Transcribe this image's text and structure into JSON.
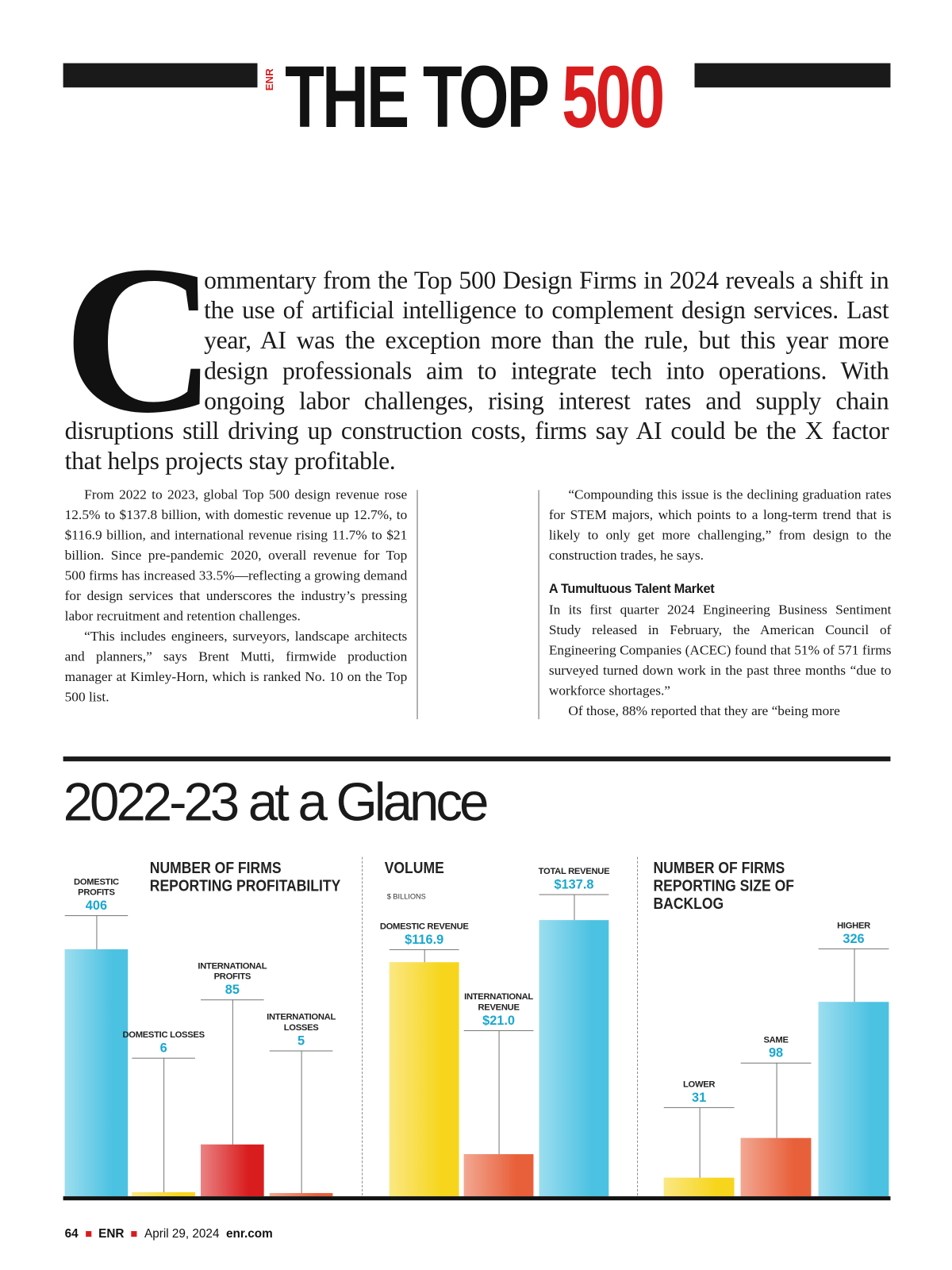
{
  "header": {
    "brand": "ENR",
    "title": "THE TOP",
    "title_number": "500"
  },
  "lede": {
    "drop_cap": "C",
    "text": "ommentary from the Top 500 Design Firms in 2024 reveals a shift in the use of artificial intelligence to complement design services. Last year, AI was the exception more than the rule, but this year more design professionals aim to integrate tech into operations. With ongoing labor challenges, rising interest rates and supply chain disruptions still driving up construction costs, firms say AI could be the X factor that helps projects stay profitable."
  },
  "column_left": [
    "From 2022 to 2023, global Top 500 design revenue rose 12.5% to $137.8 billion, with domestic revenue up 12.7%, to $116.9 billion, and international revenue rising 11.7% to $21 billion. Since pre-pandemic 2020, overall revenue for Top 500 firms has increased 33.5%—reflecting a growing demand for design services that underscores the industry’s pressing labor recruitment and retention challenges.",
    "“This includes engineers, surveyors, landscape architects and planners,” says Brent Mutti, firmwide production manager at Kimley-Horn, which is ranked No. 10 on the Top 500 list."
  ],
  "column_right": {
    "intro": "“Compounding this issue is the declining graduation rates for STEM majors, which points to a long-term trend that is likely to only get more challenging,” from design to the construction trades, he says.",
    "heading": "A Tumultuous Talent Market",
    "paragraphs": [
      "In its first quarter 2024 Engineering Business Sentiment Study released in February, the American Council of Engineering Companies (ACEC) found that 51% of 571 firms surveyed turned down work in the past three months “due to workforce shortages.”",
      "Of those, 88% reported that they are “being more"
    ]
  },
  "section_title": "2022-23 at a Glance",
  "chart_data": [
    {
      "type": "bar",
      "title": "NUMBER OF FIRMS REPORTING PROFITABILITY",
      "categories": [
        "DOMESTIC PROFITS",
        "DOMESTIC LOSSES",
        "INTERNATIONAL PROFITS",
        "INTERNATIONAL LOSSES"
      ],
      "values": [
        406,
        6,
        85,
        5
      ],
      "colors": [
        "#4cc2e2",
        "#f7d51c",
        "#d91d1e",
        "#e8603a"
      ]
    },
    {
      "type": "bar",
      "title": "VOLUME",
      "subtitle": "$ BILLIONS",
      "categories": [
        "DOMESTIC REVENUE",
        "INTERNATIONAL REVENUE",
        "TOTAL REVENUE"
      ],
      "values": [
        116.9,
        21.0,
        137.8
      ],
      "value_labels": [
        "$116.9",
        "$21.0",
        "$137.8"
      ],
      "colors": [
        "#f7d51c",
        "#e8603a",
        "#4cc2e2"
      ]
    },
    {
      "type": "bar",
      "title": "NUMBER OF FIRMS REPORTING SIZE OF BACKLOG",
      "categories": [
        "LOWER",
        "SAME",
        "HIGHER"
      ],
      "values": [
        31,
        98,
        326
      ],
      "colors": [
        "#f7d51c",
        "#e8603a",
        "#4cc2e2"
      ]
    }
  ],
  "footer": {
    "page": "64",
    "brand": "ENR",
    "date": "April 29, 2024",
    "site": "enr.com"
  }
}
